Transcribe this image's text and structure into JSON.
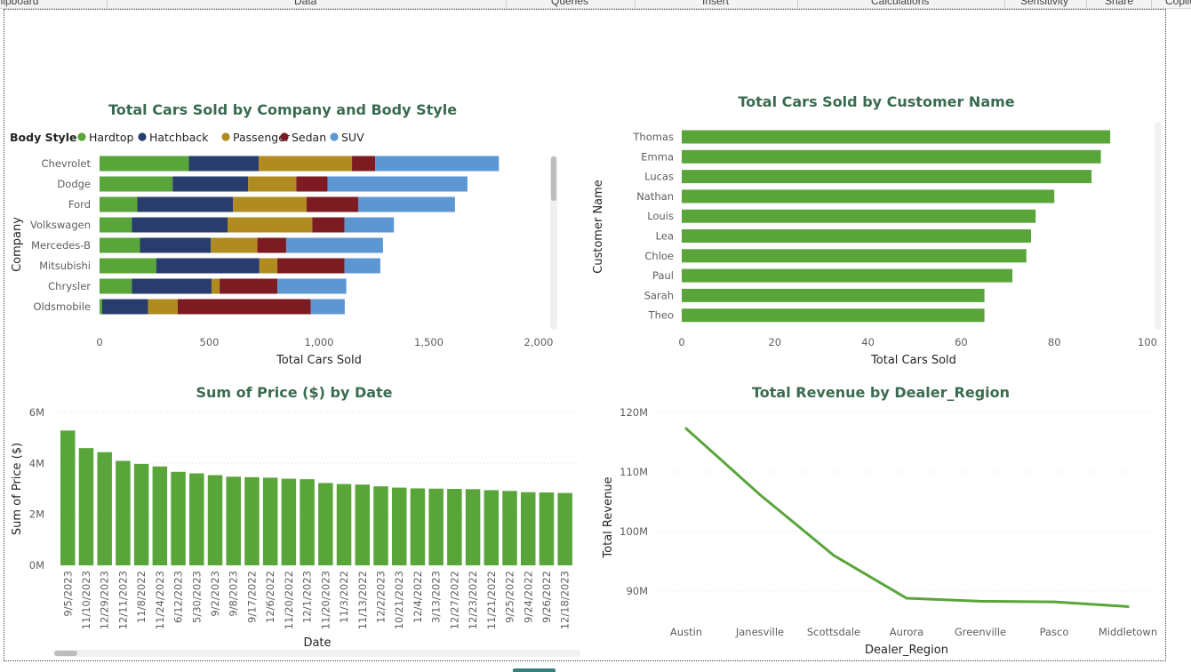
{
  "ribbon": {
    "items": [
      "Clipboard",
      "Data",
      "Queries",
      "Insert",
      "Calculations",
      "Sensitivity",
      "Share",
      "Copilot"
    ]
  },
  "colors": {
    "green": "#5aa53a",
    "title": "#3a6b50",
    "Hardtop": "#5aa53a",
    "Hatchback": "#283c6e",
    "Passenger": "#b08b20",
    "Sedan": "#7d1b22",
    "SUV": "#5c97d4"
  },
  "chart_data": [
    {
      "id": "company",
      "type": "bar",
      "orientation": "horizontal",
      "stacked": true,
      "title": "Total Cars Sold by Company and Body Style",
      "xlabel": "Total Cars Sold",
      "ylabel": "Company",
      "legend_title": "Body Style",
      "legend_position": "top-left",
      "xlim": [
        0,
        2000
      ],
      "xticks": [
        0,
        500,
        1000,
        1500,
        2000
      ],
      "categories": [
        "Chevrolet",
        "Dodge",
        "Ford",
        "Volkswagen",
        "Mercedes-B",
        "Mitsubishi",
        "Chrysler",
        "Oldsmobile"
      ],
      "series": [
        {
          "name": "Hardtop",
          "values": [
            407,
            333,
            172,
            147,
            184,
            258,
            147,
            12
          ]
        },
        {
          "name": "Hatchback",
          "values": [
            318,
            344,
            436,
            436,
            323,
            470,
            363,
            209
          ]
        },
        {
          "name": "Passenger",
          "values": [
            425,
            219,
            335,
            386,
            212,
            82,
            37,
            135
          ]
        },
        {
          "name": "Sedan",
          "values": [
            106,
            143,
            235,
            147,
            131,
            306,
            263,
            606
          ]
        },
        {
          "name": "SUV",
          "values": [
            563,
            637,
            441,
            225,
            441,
            163,
            314,
            155
          ]
        }
      ]
    },
    {
      "id": "customer",
      "type": "bar",
      "orientation": "horizontal",
      "title": "Total Cars Sold by Customer Name",
      "xlabel": "Total Cars Sold",
      "ylabel": "Customer Name",
      "xlim": [
        0,
        100
      ],
      "xticks": [
        0,
        20,
        40,
        60,
        80,
        100
      ],
      "categories": [
        "Thomas",
        "Emma",
        "Lucas",
        "Nathan",
        "Louis",
        "Lea",
        "Chloe",
        "Paul",
        "Sarah",
        "Theo"
      ],
      "values": [
        92,
        90,
        88,
        80,
        76,
        75,
        74,
        71,
        65,
        65
      ]
    },
    {
      "id": "price",
      "type": "bar",
      "title": "Sum of Price ($) by Date",
      "xlabel": "Date",
      "ylabel": "Sum of Price ($)",
      "ylim": [
        0,
        6000000
      ],
      "yticks": [
        0,
        2000000,
        4000000,
        6000000
      ],
      "ytick_labels": [
        "0M",
        "2M",
        "4M",
        "6M"
      ],
      "categories": [
        "9/5/2023",
        "11/10/2023",
        "12/29/2023",
        "12/11/2023",
        "11/8/2022",
        "11/24/2023",
        "6/12/2023",
        "5/30/2023",
        "9/2/2023",
        "9/8/2023",
        "9/17/2022",
        "12/6/2022",
        "11/20/2022",
        "12/1/2023",
        "11/20/2023",
        "11/3/2022",
        "11/13/2022",
        "12/2/2023",
        "10/21/2023",
        "12/4/2022",
        "3/13/2023",
        "12/27/2022",
        "12/23/2022",
        "11/21/2022",
        "9/25/2022",
        "9/24/2022",
        "9/26/2022",
        "12/18/2023"
      ],
      "values": [
        5290000,
        4600000,
        4440000,
        4100000,
        3980000,
        3880000,
        3670000,
        3610000,
        3540000,
        3480000,
        3460000,
        3440000,
        3400000,
        3380000,
        3230000,
        3190000,
        3170000,
        3100000,
        3050000,
        3020000,
        3010000,
        3000000,
        2990000,
        2950000,
        2920000,
        2870000,
        2860000,
        2840000
      ]
    },
    {
      "id": "revenue",
      "type": "line",
      "title": "Total Revenue by Dealer_Region",
      "xlabel": "Dealer_Region",
      "ylabel": "Total Revenue",
      "ylim": [
        85000000,
        120000000
      ],
      "yticks": [
        90000000,
        100000000,
        110000000,
        120000000
      ],
      "ytick_labels": [
        "90M",
        "100M",
        "110M",
        "120M"
      ],
      "categories": [
        "Austin",
        "Janesville",
        "Scottsdale",
        "Aurora",
        "Greenville",
        "Pasco",
        "Middletown"
      ],
      "values": [
        117300000,
        106200000,
        96000000,
        88800000,
        88300000,
        88200000,
        87400000
      ]
    }
  ]
}
